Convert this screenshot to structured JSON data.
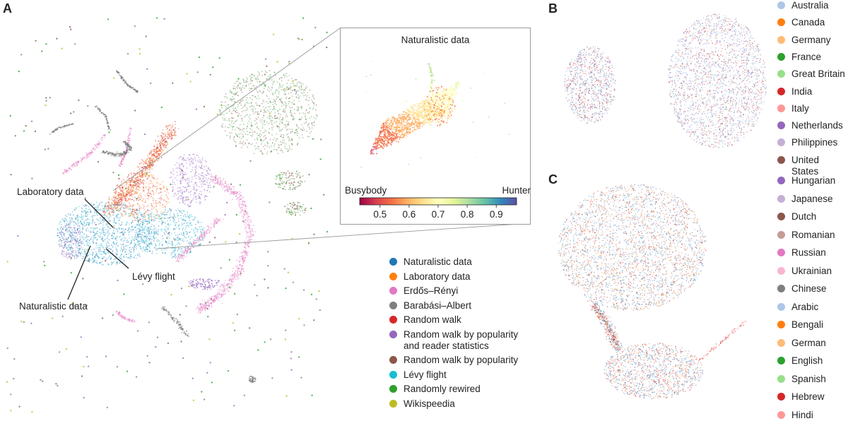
{
  "panels": {
    "a": "A",
    "b": "B",
    "c": "C"
  },
  "callouts": {
    "laboratory": "Laboratory data",
    "naturalistic": "Naturalistic data",
    "levy": "Lévy flight"
  },
  "legend_a": [
    {
      "label": "Naturalistic data",
      "color": "#1f77b4"
    },
    {
      "label": "Laboratory data",
      "color": "#ff7f0e"
    },
    {
      "label": "Erdős–Rényi",
      "color": "#e377c2"
    },
    {
      "label": "Barabási–Albert",
      "color": "#7f7f7f"
    },
    {
      "label": "Random walk",
      "color": "#d62728"
    },
    {
      "label": "Random walk by popularity\nand reader statistics",
      "color": "#9467bd"
    },
    {
      "label": "Random walk by popularity",
      "color": "#8c564b"
    },
    {
      "label": "Lévy flight",
      "color": "#17becf"
    },
    {
      "label": "Randomly rewired",
      "color": "#2ca02c"
    },
    {
      "label": "Wikispeedia",
      "color": "#bcbd22"
    }
  ],
  "legend_b": [
    {
      "label": "Australia",
      "color": "#aec7e8"
    },
    {
      "label": "Canada",
      "color": "#ff7f0e"
    },
    {
      "label": "Germany",
      "color": "#ffbb78"
    },
    {
      "label": "France",
      "color": "#2ca02c"
    },
    {
      "label": "Great Britain",
      "color": "#98df8a"
    },
    {
      "label": "India",
      "color": "#d62728"
    },
    {
      "label": "Italy",
      "color": "#ff9896"
    },
    {
      "label": "Netherlands",
      "color": "#9467bd"
    },
    {
      "label": "Philippines",
      "color": "#c5b0d5"
    },
    {
      "label": "United States",
      "color": "#8c564b"
    }
  ],
  "legend_c": [
    {
      "label": "Hungarian",
      "color": "#9467bd"
    },
    {
      "label": "Japanese",
      "color": "#c5b0d5"
    },
    {
      "label": "Dutch",
      "color": "#8c564b"
    },
    {
      "label": "Romanian",
      "color": "#c49c94"
    },
    {
      "label": "Russian",
      "color": "#e377c2"
    },
    {
      "label": "Ukrainian",
      "color": "#f7b6d2"
    },
    {
      "label": "Chinese",
      "color": "#7f7f7f"
    },
    {
      "label": "Arabic",
      "color": "#aec7e8"
    },
    {
      "label": "Bengali",
      "color": "#ff7f0e"
    },
    {
      "label": "German",
      "color": "#ffbb78"
    },
    {
      "label": "English",
      "color": "#2ca02c"
    },
    {
      "label": "Spanish",
      "color": "#98df8a"
    },
    {
      "label": "Hebrew",
      "color": "#d62728"
    },
    {
      "label": "Hindi",
      "color": "#ff9896"
    }
  ],
  "chart_data": [
    {
      "type": "scatter",
      "panel": "A",
      "title": "",
      "series": [
        {
          "name": "Naturalistic data"
        },
        {
          "name": "Laboratory data"
        },
        {
          "name": "Erdős–Rényi"
        },
        {
          "name": "Barabási–Albert"
        },
        {
          "name": "Random walk"
        },
        {
          "name": "Random walk by popularity\nand reader statistics"
        },
        {
          "name": "Random walk by popularity"
        },
        {
          "name": "Lévy flight"
        },
        {
          "name": "Randomly rewired"
        },
        {
          "name": "Wikispeedia"
        }
      ]
    },
    {
      "type": "scatter",
      "panel": "A-inset",
      "title": "Naturalistic data",
      "colorbar": {
        "min_label": "Busybody",
        "max_label": "Hunter",
        "range": [
          0.43,
          0.97
        ],
        "ticks": [
          0.5,
          0.6,
          0.7,
          0.8,
          0.9
        ],
        "tick_labels": [
          "0.5",
          "0.6",
          "0.7",
          "0.8",
          "0.9"
        ],
        "colormap": [
          "#9e0142",
          "#d53e4f",
          "#f46d43",
          "#fdae61",
          "#fee08b",
          "#ffffbf",
          "#e6f598",
          "#abdda4",
          "#66c2a5",
          "#3288bd",
          "#5e4fa2"
        ]
      }
    },
    {
      "type": "scatter",
      "panel": "B",
      "title": ""
    },
    {
      "type": "scatter",
      "panel": "C",
      "title": ""
    }
  ]
}
